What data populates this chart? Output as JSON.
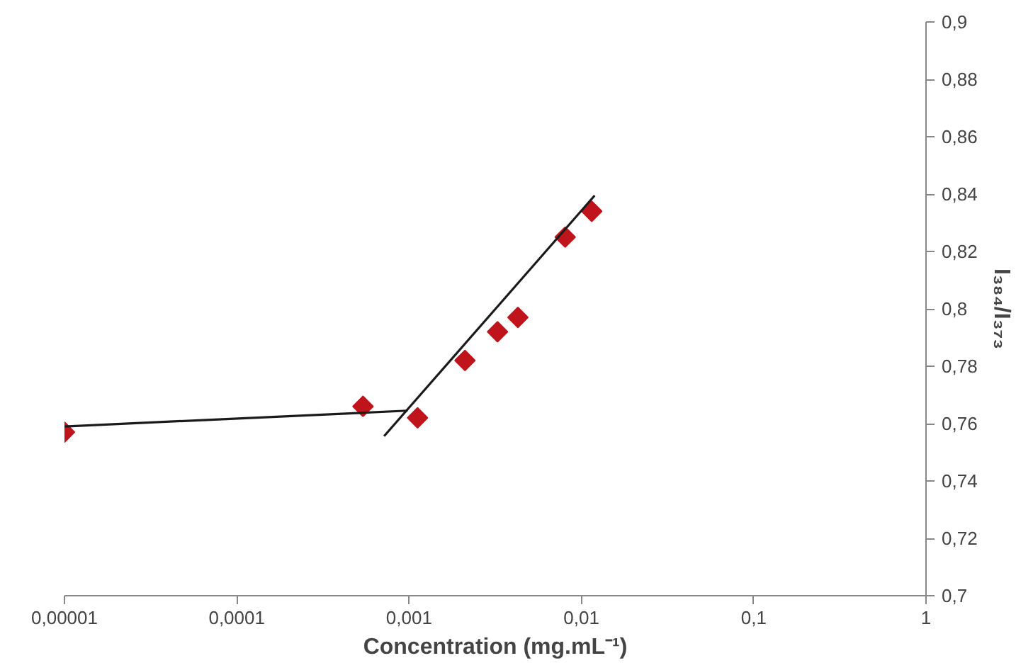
{
  "chart_data": {
    "type": "scatter",
    "xlabel": "Concentration (mg.mL⁻¹)",
    "ylabel": "I₃₈₄/I₃₇₃",
    "log": "x",
    "xlim": [
      1e-05,
      1
    ],
    "ylim": [
      0.7,
      0.9
    ],
    "xticks": [
      {
        "value": 1e-05,
        "label": "0,00001"
      },
      {
        "value": 0.0001,
        "label": "0,0001"
      },
      {
        "value": 0.001,
        "label": "0,001"
      },
      {
        "value": 0.01,
        "label": "0,01"
      },
      {
        "value": 0.1,
        "label": "0,1"
      },
      1
    ],
    "yticks": [
      {
        "value": 0.7,
        "label": "0,7"
      },
      {
        "value": 0.72,
        "label": "0,72"
      },
      {
        "value": 0.74,
        "label": "0,74"
      },
      {
        "value": 0.76,
        "label": "0,76"
      },
      {
        "value": 0.78,
        "label": "0,78"
      },
      {
        "value": 0.8,
        "label": "0,8"
      },
      {
        "value": 0.82,
        "label": "0,82"
      },
      {
        "value": 0.84,
        "label": "0,84"
      },
      {
        "value": 0.86,
        "label": "0,86"
      },
      {
        "value": 0.88,
        "label": "0,88"
      },
      {
        "value": 0.9,
        "label": "0,9"
      }
    ],
    "series": [
      {
        "marker": "diamond",
        "color": "#c0141c",
        "x": [
          1e-05,
          0.00054,
          0.00112,
          0.00211,
          0.00326,
          0.00428,
          0.00805,
          0.01148
        ],
        "values": [
          0.757,
          0.766,
          0.762,
          0.782,
          0.792,
          0.797,
          0.825,
          0.834
        ]
      },
      {
        "type": "line",
        "marker": "none",
        "color": "#1a1a1a",
        "x": [
          1e-05,
          0.00098
        ],
        "values": [
          0.759,
          0.7645
        ]
      },
      {
        "type": "line",
        "marker": "none",
        "color": "#1a1a1a",
        "x": [
          0.000716,
          0.01194
        ],
        "values": [
          0.7556,
          0.8395
        ]
      }
    ]
  }
}
